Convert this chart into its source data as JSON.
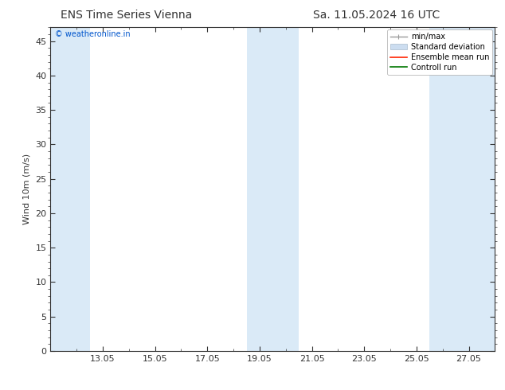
{
  "title_left": "ENS Time Series Vienna",
  "title_right": "Sa. 11.05.2024 16 UTC",
  "ylabel": "Wind 10m (m/s)",
  "watermark": "© weatheronline.in",
  "watermark_color": "#0055cc",
  "ylim": [
    0,
    47
  ],
  "yticks": [
    0,
    5,
    10,
    15,
    20,
    25,
    30,
    35,
    40,
    45
  ],
  "xtick_labels": [
    "13.05",
    "15.05",
    "17.05",
    "19.05",
    "21.05",
    "23.05",
    "25.05",
    "27.05"
  ],
  "xtick_positions": [
    2,
    4,
    6,
    8,
    10,
    12,
    14,
    16
  ],
  "xmin": 0,
  "xmax": 17,
  "shaded_bands": [
    {
      "xmin": 0.0,
      "xmax": 1.5,
      "color": "#daeaf7"
    },
    {
      "xmin": 7.5,
      "xmax": 9.5,
      "color": "#daeaf7"
    },
    {
      "xmin": 14.5,
      "xmax": 17.0,
      "color": "#daeaf7"
    }
  ],
  "background_color": "#ffffff",
  "plot_bg_color": "#ffffff",
  "font_color": "#333333",
  "title_fontsize": 10,
  "tick_fontsize": 8,
  "ylabel_fontsize": 8,
  "watermark_fontsize": 7,
  "legend_fontsize": 7
}
